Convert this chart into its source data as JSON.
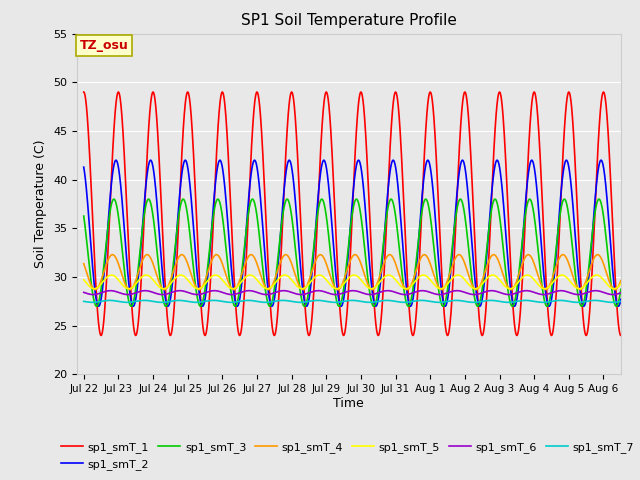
{
  "title": "SP1 Soil Temperature Profile",
  "xlabel": "Time",
  "ylabel": "Soil Temperature (C)",
  "ylim": [
    20,
    55
  ],
  "fig_bg": "#e8e8e8",
  "plot_bg": "#e8e8e8",
  "annotation_text": "TZ_osu",
  "annotation_color": "#cc0000",
  "annotation_box_color": "#ffffcc",
  "annotation_box_edge": "#aaaa00",
  "series_order": [
    "sp1_smT_1",
    "sp1_smT_2",
    "sp1_smT_3",
    "sp1_smT_4",
    "sp1_smT_5",
    "sp1_smT_6",
    "sp1_smT_7"
  ],
  "colors": {
    "sp1_smT_1": "#ff0000",
    "sp1_smT_2": "#0000ff",
    "sp1_smT_3": "#00cc00",
    "sp1_smT_4": "#ff9900",
    "sp1_smT_5": "#ffff00",
    "sp1_smT_6": "#9900cc",
    "sp1_smT_7": "#00cccc"
  },
  "amplitudes": {
    "sp1_smT_1": 12.5,
    "sp1_smT_2": 7.5,
    "sp1_smT_3": 5.5,
    "sp1_smT_4": 1.8,
    "sp1_smT_5": 0.7,
    "sp1_smT_6": 0.2,
    "sp1_smT_7": 0.1
  },
  "bases": {
    "sp1_smT_1": 36.5,
    "sp1_smT_2": 34.5,
    "sp1_smT_3": 32.5,
    "sp1_smT_4": 30.5,
    "sp1_smT_5": 29.5,
    "sp1_smT_6": 28.4,
    "sp1_smT_7": 27.5
  },
  "phases": {
    "sp1_smT_1": 0.75,
    "sp1_smT_2": 0.68,
    "sp1_smT_3": 0.62,
    "sp1_smT_4": 0.58,
    "sp1_smT_5": 0.55,
    "sp1_smT_6": 0.52,
    "sp1_smT_7": 0.5
  },
  "x_tick_labels": [
    "Jul 22",
    "Jul 23",
    "Jul 24",
    "Jul 25",
    "Jul 26",
    "Jul 27",
    "Jul 28",
    "Jul 29",
    "Jul 30",
    "Jul 31",
    "Aug 1",
    "Aug 2",
    "Aug 3",
    "Aug 4",
    "Aug 5",
    "Aug 6"
  ],
  "x_tick_positions": [
    0,
    1,
    2,
    3,
    4,
    5,
    6,
    7,
    8,
    9,
    10,
    11,
    12,
    13,
    14,
    15
  ]
}
